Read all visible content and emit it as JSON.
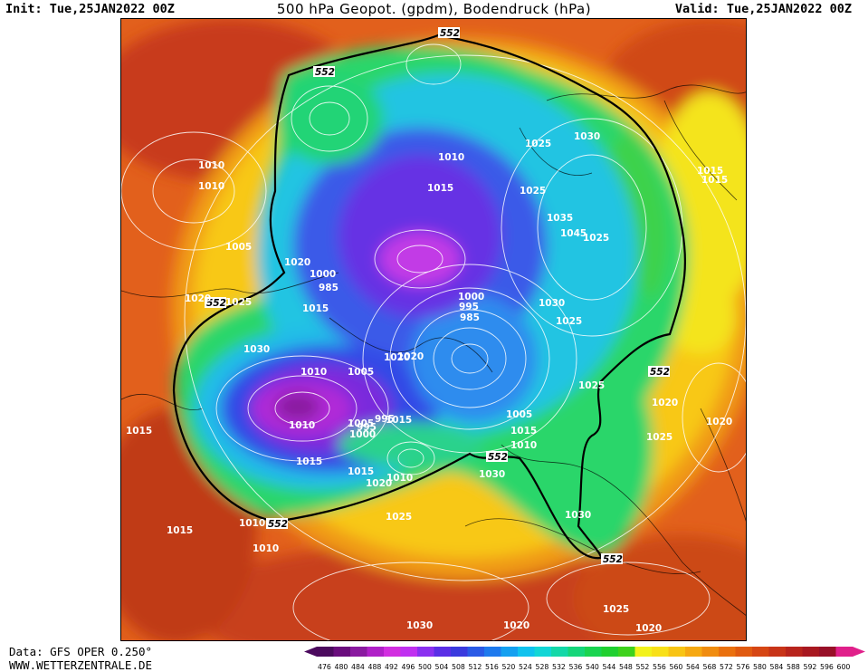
{
  "header": {
    "init": "Init: Tue,25JAN2022 00Z",
    "title": "500 hPa Geopot. (gpdm), Bodendruck (hPa)",
    "valid": "Valid: Tue,25JAN2022 00Z"
  },
  "footer": {
    "data_source": "Data: GFS OPER 0.250°",
    "website": "WWW.WETTERZENTRALE.DE"
  },
  "map": {
    "contour_552_label": "552",
    "pressure_labels": [
      "1015",
      "1010",
      "1010",
      "1005",
      "1020",
      "1020",
      "1025",
      "1015",
      "1030",
      "1000",
      "985",
      "1010",
      "1005",
      "1010",
      "1015",
      "1005",
      "1020",
      "995",
      "995",
      "1000",
      "1015",
      "1015",
      "1020",
      "1010",
      "1025",
      "1025",
      "1015",
      "1025",
      "1030",
      "1025",
      "1035",
      "1045",
      "1030",
      "1025",
      "1000",
      "995",
      "985",
      "1005",
      "1015",
      "1010",
      "1030",
      "1020",
      "1025",
      "1030",
      "1025",
      "1020",
      "1020",
      "1030",
      "1020",
      "1025",
      "1020",
      "1015",
      "1015",
      "1010",
      "1015",
      "1010",
      "1010"
    ]
  },
  "legend": {
    "values": [
      "476",
      "480",
      "484",
      "488",
      "492",
      "496",
      "500",
      "504",
      "508",
      "512",
      "516",
      "520",
      "524",
      "528",
      "532",
      "536",
      "540",
      "544",
      "548",
      "552",
      "556",
      "560",
      "564",
      "568",
      "572",
      "576",
      "580",
      "584",
      "588",
      "592",
      "596",
      "600"
    ],
    "colors": [
      "#4b0a5e",
      "#6a0d7d",
      "#8a1aa0",
      "#b020c8",
      "#d22ee0",
      "#c030f0",
      "#8a30f0",
      "#5a2ee6",
      "#3a3ade",
      "#2a5ae6",
      "#1e7aee",
      "#14a0f0",
      "#10c2ee",
      "#12d6d6",
      "#14d8a8",
      "#16d67a",
      "#1ad450",
      "#20d030",
      "#3ed21c",
      "#f2f21c",
      "#f8e018",
      "#f8c414",
      "#f6a812",
      "#f08c10",
      "#ea700e",
      "#e05a10",
      "#d64614",
      "#c83418",
      "#b8241c",
      "#a81820",
      "#981028",
      "#e0208a"
    ]
  },
  "colors": {
    "background_field": "#e4641e",
    "ring_yellow": "#f2e41c",
    "polar_green": "#1ed86e",
    "cyan": "#18c8e0",
    "blue": "#3650e8",
    "purple": "#8a28d8",
    "magenta": "#d83ae0"
  }
}
